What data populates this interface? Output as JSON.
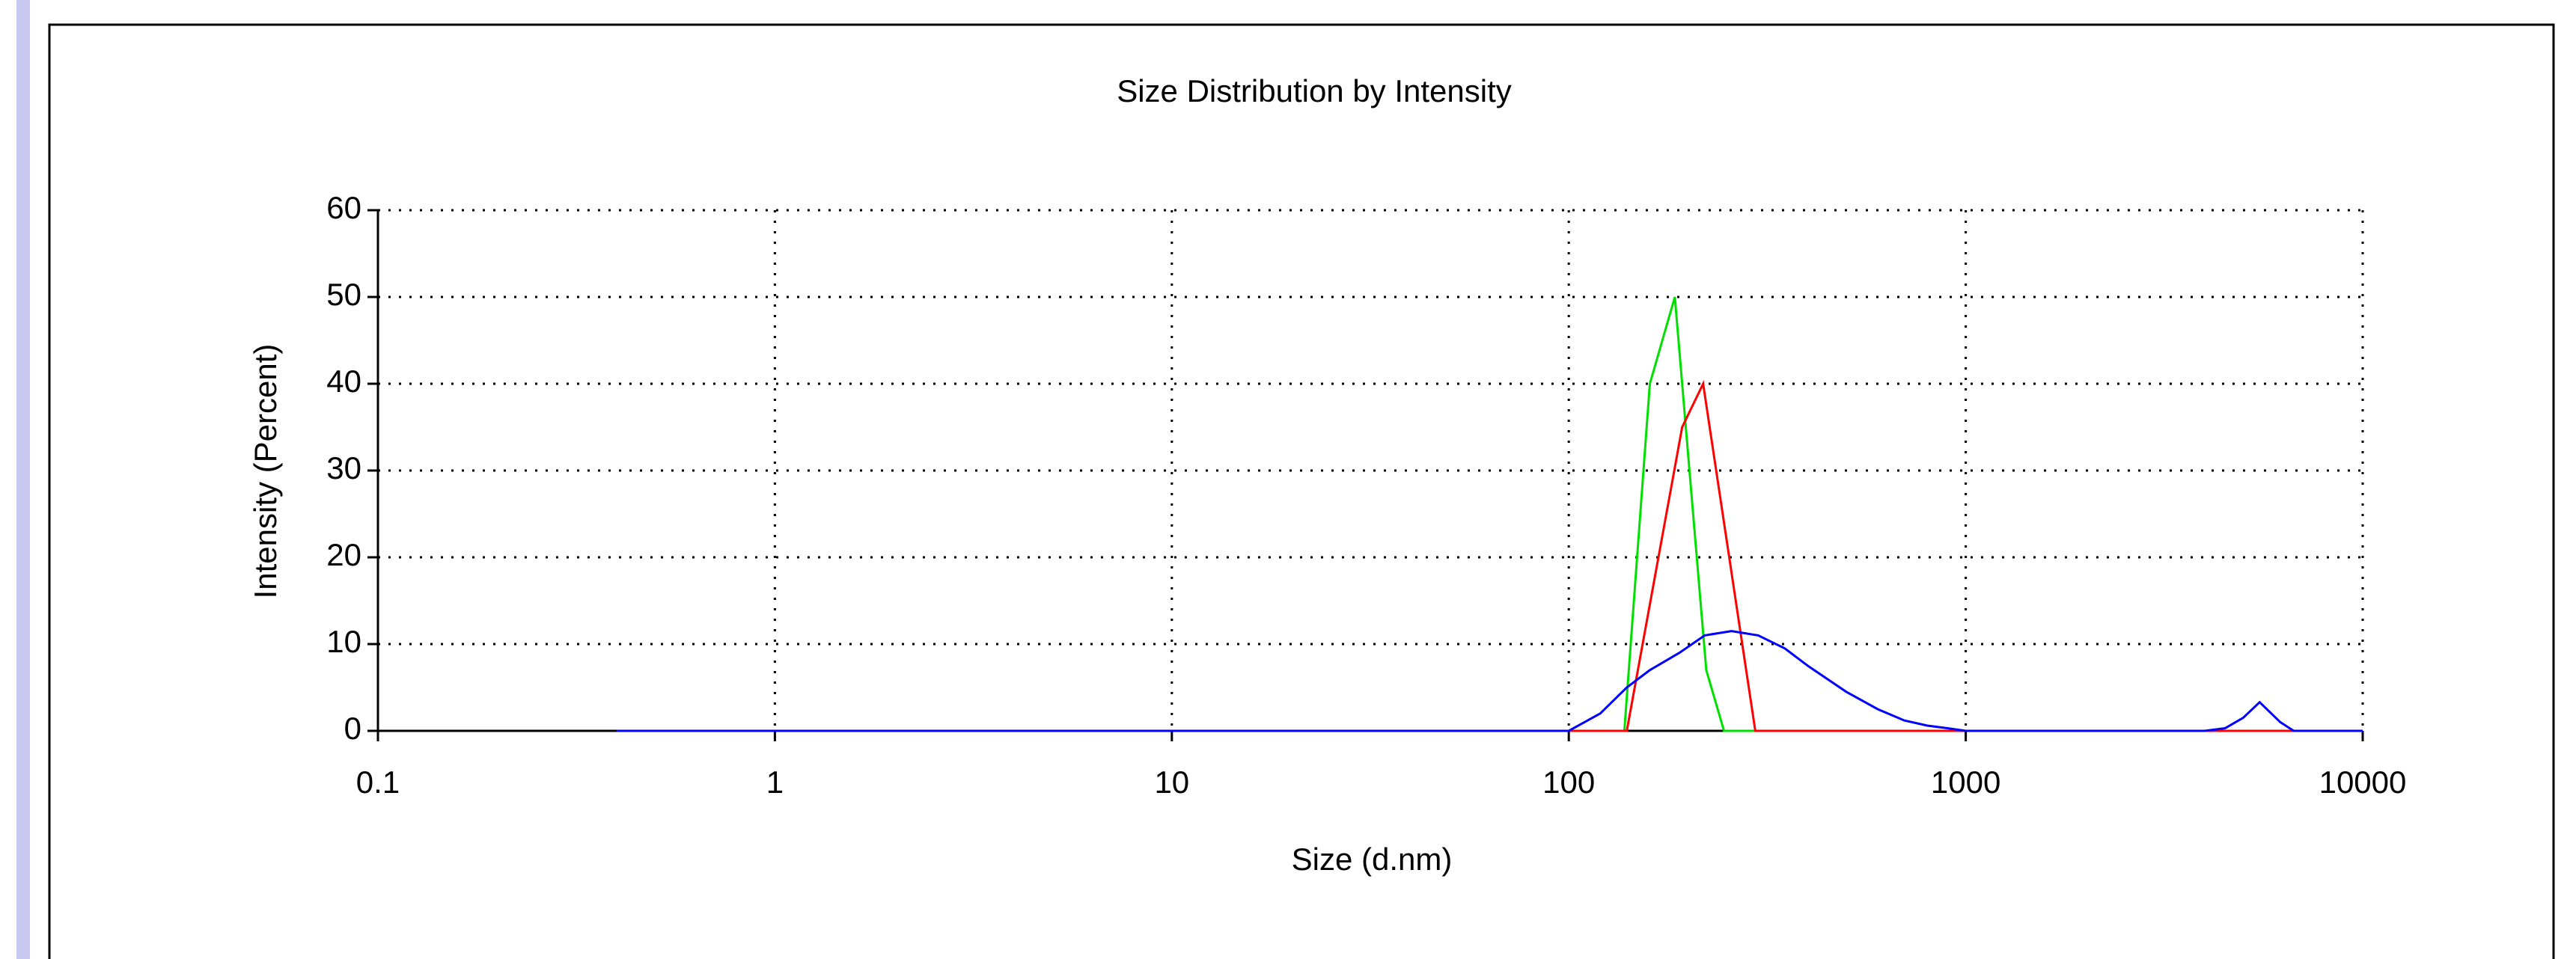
{
  "chart_data": {
    "type": "line",
    "title": "Size Distribution by Intensity",
    "x_label": "Size (d.nm)",
    "y_label": "Intensity (Percent)",
    "x_scale": "log",
    "grid": true,
    "xlim": [
      0.1,
      10000
    ],
    "xticks": [
      0.1,
      1,
      10,
      100,
      1000,
      10000
    ],
    "ylim": [
      0,
      60
    ],
    "yticks": [
      0,
      10,
      20,
      30,
      40,
      50,
      60
    ],
    "series": [
      {
        "color": "#00e000",
        "x": [
          0.4,
          138,
          160,
          185,
          222,
          246,
          10000
        ],
        "values": [
          0,
          0,
          40,
          50,
          7,
          0,
          0
        ]
      },
      {
        "color": "#ff0000",
        "x": [
          0.4,
          140,
          193,
          218,
          295,
          10000
        ],
        "values": [
          0,
          0,
          35,
          40,
          0,
          0
        ]
      },
      {
        "color": "#0000ff",
        "x": [
          0.4,
          0.5,
          0.6,
          0.7,
          0.8,
          0.9,
          1,
          2,
          3,
          4,
          5,
          6,
          7,
          8,
          9,
          10,
          20,
          30,
          40,
          50,
          60,
          70,
          80,
          90,
          100,
          120,
          140,
          160,
          190,
          220,
          257,
          300,
          350,
          400,
          500,
          600,
          700,
          800,
          900,
          1000,
          2000,
          3000,
          4000,
          4500,
          5000,
          5500,
          6200,
          6700,
          8000,
          10000
        ],
        "values": [
          0,
          0,
          0,
          0,
          0,
          0,
          0,
          0,
          0,
          0,
          0,
          0,
          0,
          0,
          0,
          0,
          0,
          0,
          0,
          0,
          0,
          0,
          0,
          0,
          0,
          2,
          5,
          7,
          9,
          11,
          11.5,
          11,
          9.5,
          7.5,
          4.5,
          2.5,
          1.2,
          0.6,
          0.3,
          0,
          0,
          0,
          0,
          0.3,
          1.5,
          3.3,
          1,
          0,
          0,
          0
        ]
      }
    ]
  }
}
